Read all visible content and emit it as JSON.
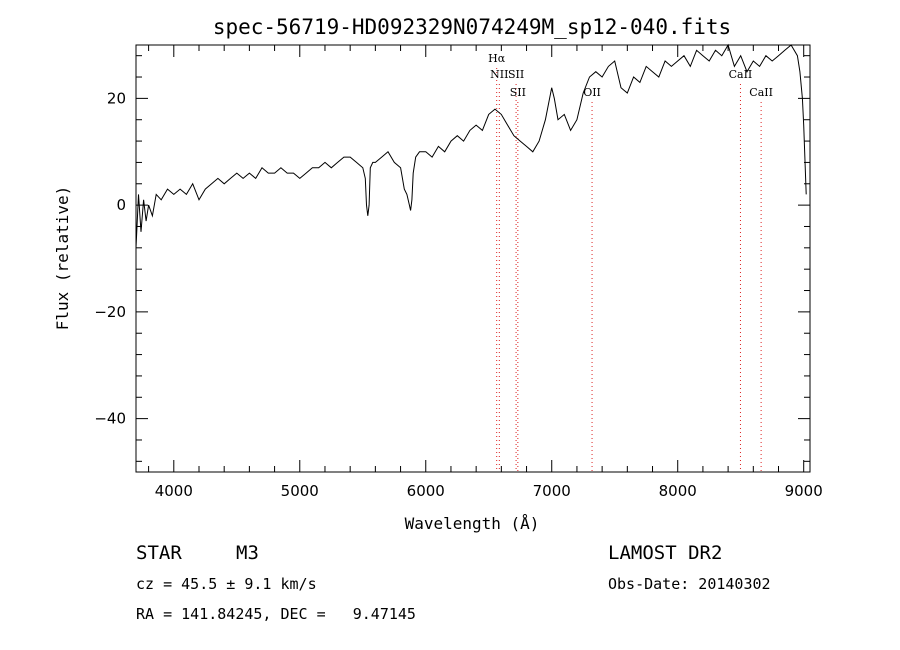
{
  "chart_data": {
    "type": "line",
    "title": "spec-56719-HD092329N074249M_sp12-040.fits",
    "xlabel": "Wavelength (Å)",
    "ylabel": "Flux (relative)",
    "xlim": [
      3700,
      9050
    ],
    "ylim": [
      -50,
      30
    ],
    "x_ticks": [
      4000,
      5000,
      6000,
      7000,
      8000,
      9000
    ],
    "y_ticks": [
      -40,
      -20,
      0,
      20
    ],
    "grid": false,
    "series": [
      {
        "x": [
          3700,
          3720,
          3740,
          3760,
          3780,
          3800,
          3830,
          3860,
          3900,
          3950,
          4000,
          4050,
          4100,
          4150,
          4200,
          4250,
          4300,
          4350,
          4400,
          4450,
          4500,
          4550,
          4600,
          4650,
          4700,
          4750,
          4800,
          4850,
          4900,
          4950,
          5000,
          5050,
          5100,
          5150,
          5200,
          5250,
          5300,
          5350,
          5400,
          5450,
          5500,
          5520,
          5530,
          5540,
          5550,
          5560,
          5580,
          5600,
          5650,
          5700,
          5750,
          5800,
          5830,
          5850,
          5870,
          5880,
          5890,
          5900,
          5920,
          5950,
          6000,
          6050,
          6100,
          6150,
          6200,
          6250,
          6300,
          6350,
          6400,
          6450,
          6500,
          6550,
          6600,
          6650,
          6700,
          6750,
          6800,
          6850,
          6900,
          6950,
          7000,
          7020,
          7050,
          7100,
          7150,
          7200,
          7250,
          7300,
          7350,
          7400,
          7450,
          7500,
          7550,
          7600,
          7650,
          7700,
          7750,
          7800,
          7850,
          7900,
          7950,
          8000,
          8050,
          8100,
          8150,
          8200,
          8250,
          8300,
          8350,
          8400,
          8450,
          8500,
          8550,
          8600,
          8650,
          8700,
          8750,
          8800,
          8850,
          8900,
          8950,
          8970,
          8990,
          9000,
          9020
        ],
        "y": [
          -8,
          2,
          -5,
          1,
          -3,
          0,
          -2,
          2,
          1,
          3,
          2,
          3,
          2,
          4,
          1,
          3,
          4,
          5,
          4,
          5,
          6,
          5,
          6,
          5,
          7,
          6,
          6,
          7,
          6,
          6,
          5,
          6,
          7,
          7,
          8,
          7,
          8,
          9,
          9,
          8,
          7,
          5,
          0,
          -2,
          0,
          7,
          8,
          8,
          9,
          10,
          8,
          7,
          3,
          2,
          0,
          -1,
          1,
          6,
          9,
          10,
          10,
          9,
          11,
          10,
          12,
          13,
          12,
          14,
          15,
          14,
          17,
          18,
          17,
          15,
          13,
          12,
          11,
          10,
          12,
          16,
          22,
          20,
          16,
          17,
          14,
          16,
          21,
          24,
          25,
          24,
          26,
          27,
          22,
          21,
          24,
          23,
          26,
          25,
          24,
          27,
          26,
          27,
          28,
          26,
          29,
          28,
          27,
          29,
          28,
          30,
          26,
          28,
          25,
          27,
          26,
          28,
          27,
          28,
          29,
          30,
          28,
          25,
          20,
          15,
          2
        ]
      }
    ],
    "line_markers": [
      {
        "label": "Hα",
        "x": 6563,
        "row": 1
      },
      {
        "label": "NII",
        "x": 6584,
        "row": 2
      },
      {
        "label": "SII",
        "x": 6717,
        "row": 2
      },
      {
        "label": "SII",
        "x": 6731,
        "row": 3
      },
      {
        "label": "OII",
        "x": 7320,
        "row": 3
      },
      {
        "label": "CaII",
        "x": 8498,
        "row": 2
      },
      {
        "label": "CaII",
        "x": 8662,
        "row": 3
      }
    ],
    "marker_color": "#dd2222"
  },
  "info": {
    "object_class": "STAR",
    "subclass": "M3",
    "survey": "LAMOST DR2",
    "redshift_text": "cz = 45.5 ± 9.1 km/s",
    "obs_date": "Obs-Date: 20140302",
    "coords": "RA = 141.84245, DEC =   9.47145"
  }
}
